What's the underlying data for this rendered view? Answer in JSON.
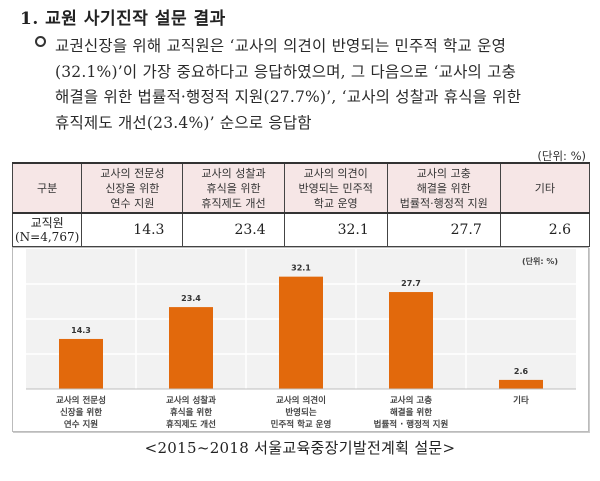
{
  "heading": "1. 교원 사기진작 설문 결과",
  "bullet": {
    "icon": "hollow-circle-bullet",
    "lines": [
      "교권신장을 위해 교직원은 ‘교사의 의견이 반영되는 민주적 학교 운영",
      "(32.1%)’이 가장 중요하다고 응답하였으며, 그 다음으로 ‘교사의 고충",
      "해결을 위한 법률적·행정적 지원(27.7%)’, ‘교사의 성찰과 휴식을 위한",
      "휴직제도 개선(23.4%)’ 순으로 응답함"
    ]
  },
  "table": {
    "unit": "(단위: %)",
    "header": {
      "category": "구분",
      "columns": [
        [
          "교사의 전문성",
          "신장을 위한",
          "연수 지원"
        ],
        [
          "교사의 성찰과",
          "휴식을 위한",
          "휴직제도 개선"
        ],
        [
          "교사의 의견이",
          "반영되는 민주적",
          "학교 운영"
        ],
        [
          "교사의 고충",
          "해결을 위한",
          "법률적·행정적 지원"
        ],
        [
          "기타"
        ]
      ]
    },
    "rows": [
      {
        "label": [
          "교직원",
          "(N=4,767)"
        ],
        "values": [
          "14.3",
          "23.4",
          "32.1",
          "27.7",
          "2.6"
        ]
      }
    ]
  },
  "chart_data": {
    "type": "bar",
    "title": "",
    "unit_label": "(단위: %)",
    "categories": [
      [
        "교사의 전문성",
        "신장을 위한",
        "연수 지원"
      ],
      [
        "교사의 성찰과",
        "휴식을 위한",
        "휴직제도 개선"
      ],
      [
        "교사의 의견이",
        "반영되는",
        "민주적 학교 운영"
      ],
      [
        "교사의 고충",
        "해결을 위한",
        "법률적 · 행정적 지원"
      ],
      [
        "기타"
      ]
    ],
    "values": [
      14.3,
      23.4,
      32.1,
      27.7,
      2.6
    ],
    "data_labels": [
      "14.3",
      "23.4",
      "32.1",
      "27.7",
      "2.6"
    ],
    "ylim": [
      0,
      40
    ],
    "grid": true,
    "gridline_step": 10,
    "bar_color": "#e2690c",
    "plot_background": "#f2f2f2",
    "xlabel": "",
    "ylabel": ""
  },
  "caption": "<2015~2018 서울교육중장기발전계획 설문>"
}
